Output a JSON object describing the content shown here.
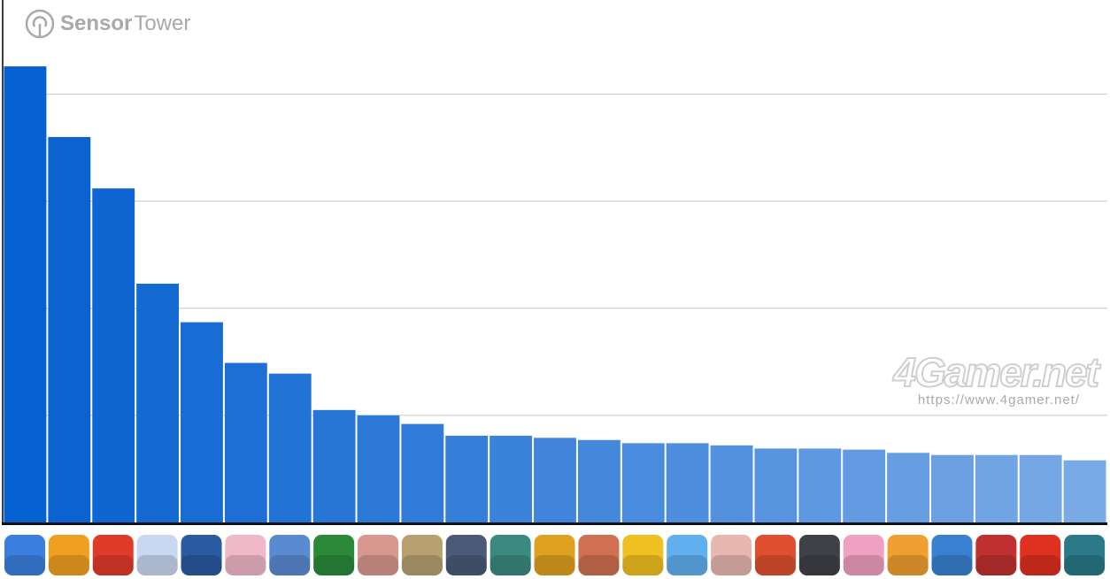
{
  "branding": {
    "logo_bold": "Sensor",
    "logo_light": "Tower",
    "watermark": "4Gamer.net",
    "watermark_url": "https://www.4gamer.net/"
  },
  "chart_data": {
    "type": "bar",
    "title": "",
    "xlabel": "",
    "ylabel": "",
    "y_axis_labels_shown": false,
    "grid": true,
    "gridline_values": [
      1,
      2,
      3,
      4
    ],
    "ylim": [
      0,
      4.88
    ],
    "values": [
      4.26,
      3.6,
      3.12,
      2.23,
      1.87,
      1.49,
      1.39,
      1.05,
      1.0,
      0.92,
      0.81,
      0.81,
      0.79,
      0.77,
      0.74,
      0.74,
      0.72,
      0.69,
      0.69,
      0.68,
      0.65,
      0.63,
      0.63,
      0.63,
      0.58
    ],
    "bar_color_start": "#0560d0",
    "bar_color_end": "#7aaae6",
    "category_icons": [
      "#3a7fe0",
      "#f0a020",
      "#e03a2a",
      "#c8d8f0",
      "#2a5aa0",
      "#f0b8c8",
      "#5a8ad0",
      "#2a8a3a",
      "#d89890",
      "#b8a070",
      "#4a5a78",
      "#3a8a80",
      "#e0a020",
      "#d07050",
      "#f0c020",
      "#60b0f0",
      "#e8b8b0",
      "#e05030",
      "#404048",
      "#f0a0c0",
      "#f0a030",
      "#3a80d0",
      "#c03030",
      "#e03020",
      "#2a7a8a"
    ]
  }
}
